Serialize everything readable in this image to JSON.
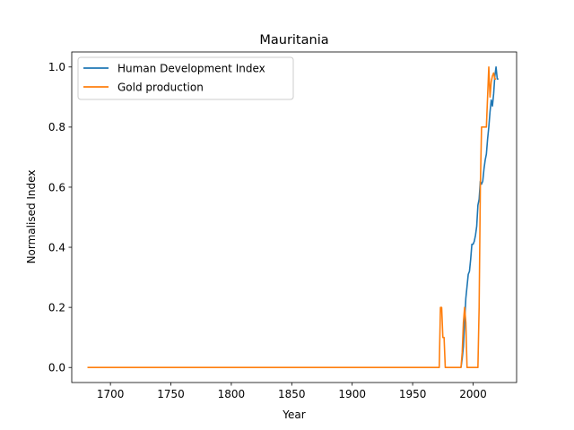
{
  "chart_data": {
    "type": "line",
    "title": "Mauritania",
    "xlabel": "Year",
    "ylabel": "Normalised Index",
    "xlim": [
      1668,
      2036
    ],
    "ylim": [
      -0.05,
      1.05
    ],
    "xticks": [
      1700,
      1750,
      1800,
      1850,
      1900,
      1950,
      2000
    ],
    "yticks": [
      0.0,
      0.2,
      0.4,
      0.6,
      0.8,
      1.0
    ],
    "xtick_labels": [
      "1700",
      "1750",
      "1800",
      "1850",
      "1900",
      "1950",
      "2000"
    ],
    "ytick_labels": [
      "0.0",
      "0.2",
      "0.4",
      "0.6",
      "0.8",
      "1.0"
    ],
    "grid": false,
    "legend_position": "top-left",
    "series": [
      {
        "name": "Human Development Index",
        "color": "#1f77b4",
        "x": [
          1990,
          1991,
          1992,
          1993,
          1994,
          1995,
          1996,
          1997,
          1998,
          1999,
          2000,
          2001,
          2002,
          2003,
          2004,
          2005,
          2006,
          2007,
          2008,
          2009,
          2010,
          2011,
          2012,
          2013,
          2014,
          2015,
          2016,
          2017,
          2018,
          2019,
          2020,
          2021
        ],
        "y": [
          0.0,
          0.03,
          0.07,
          0.15,
          0.23,
          0.27,
          0.31,
          0.32,
          0.36,
          0.41,
          0.41,
          0.42,
          0.44,
          0.47,
          0.54,
          0.56,
          0.62,
          0.61,
          0.62,
          0.66,
          0.69,
          0.71,
          0.76,
          0.8,
          0.85,
          0.89,
          0.87,
          0.91,
          0.97,
          1.0,
          0.96,
          0.96
        ]
      },
      {
        "name": "Gold production",
        "color": "#ff7f0e",
        "x": [
          1681,
          1970,
          1972,
          1973,
          1974,
          1975,
          1976,
          1977,
          1978,
          1989,
          1990,
          1991,
          1992,
          1993,
          1994,
          1995,
          2004,
          2005,
          2006,
          2007,
          2008,
          2009,
          2010,
          2011,
          2012,
          2013,
          2014,
          2015,
          2016,
          2017,
          2018,
          2019
        ],
        "y": [
          0.0,
          0.0,
          0.0,
          0.2,
          0.2,
          0.1,
          0.1,
          0.0,
          0.0,
          0.0,
          0.0,
          0.05,
          0.15,
          0.2,
          0.15,
          0.0,
          0.0,
          0.2,
          0.6,
          0.8,
          0.8,
          0.8,
          0.8,
          0.8,
          0.9,
          1.0,
          0.9,
          0.95,
          0.97,
          0.98,
          0.96,
          0.96
        ]
      }
    ]
  }
}
